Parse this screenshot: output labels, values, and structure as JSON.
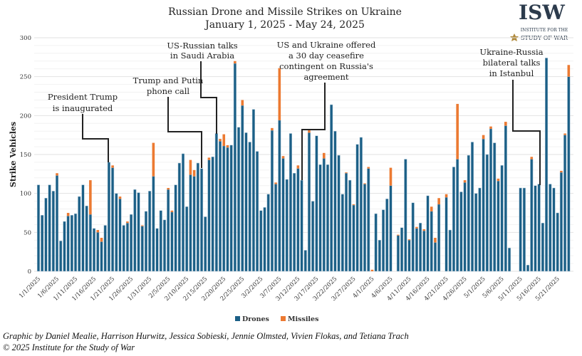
{
  "chart_data": {
    "type": "bar",
    "stacked": true,
    "title": "Russian Drone and Missile Strikes on Ukraine",
    "subtitle": "January 1, 2025 - May 24, 2025",
    "ylabel": "Strike Vehicles",
    "xlabel": "",
    "ylim": [
      0,
      300
    ],
    "yticks": [
      0,
      50,
      100,
      150,
      200,
      250,
      300
    ],
    "grid": true,
    "legend_position": "bottom",
    "x_tick_labels": [
      "1/1/2025",
      "1/6/2025",
      "1/11/2025",
      "1/16/2025",
      "1/21/2025",
      "1/26/2025",
      "1/31/2025",
      "2/5/2025",
      "2/10/2025",
      "2/15/2025",
      "2/20/2025",
      "2/25/2025",
      "3/2/2025",
      "3/7/2025",
      "3/12/2025",
      "3/17/2025",
      "3/22/2025",
      "3/27/2025",
      "4/1/2025",
      "4/6/2025",
      "4/11/2025",
      "4/16/2025",
      "4/21/2025",
      "4/26/2025",
      "5/1/2025",
      "5/6/2025",
      "5/11/2025",
      "5/16/2025",
      "5/21/2025"
    ],
    "categories": [
      "1/1",
      "1/2",
      "1/3",
      "1/4",
      "1/5",
      "1/6",
      "1/7",
      "1/8",
      "1/9",
      "1/10",
      "1/11",
      "1/12",
      "1/13",
      "1/14",
      "1/15",
      "1/16",
      "1/17",
      "1/18",
      "1/19",
      "1/20",
      "1/21",
      "1/22",
      "1/23",
      "1/24",
      "1/25",
      "1/26",
      "1/27",
      "1/28",
      "1/29",
      "1/30",
      "1/31",
      "2/1",
      "2/2",
      "2/3",
      "2/4",
      "2/5",
      "2/6",
      "2/7",
      "2/8",
      "2/9",
      "2/10",
      "2/11",
      "2/12",
      "2/13",
      "2/14",
      "2/15",
      "2/16",
      "2/17",
      "2/18",
      "2/19",
      "2/20",
      "2/21",
      "2/22",
      "2/23",
      "2/24",
      "2/25",
      "2/26",
      "2/27",
      "2/28",
      "3/1",
      "3/2",
      "3/3",
      "3/4",
      "3/5",
      "3/6",
      "3/7",
      "3/8",
      "3/9",
      "3/10",
      "3/11",
      "3/12",
      "3/13",
      "3/14",
      "3/15",
      "3/16",
      "3/17",
      "3/18",
      "3/19",
      "3/20",
      "3/21",
      "3/22",
      "3/23",
      "3/24",
      "3/25",
      "3/26",
      "3/27",
      "3/28",
      "3/29",
      "3/30",
      "3/31",
      "4/1",
      "4/2",
      "4/3",
      "4/4",
      "4/5",
      "4/6",
      "4/7",
      "4/8",
      "4/9",
      "4/10",
      "4/11",
      "4/12",
      "4/13",
      "4/14",
      "4/15",
      "4/16",
      "4/17",
      "4/18",
      "4/19",
      "4/20",
      "4/21",
      "4/22",
      "4/23",
      "4/24",
      "4/25",
      "4/26",
      "4/27",
      "4/28",
      "4/29",
      "4/30",
      "5/1",
      "5/2",
      "5/3",
      "5/4",
      "5/5",
      "5/6",
      "5/7",
      "5/8",
      "5/9",
      "5/10",
      "5/11",
      "5/12",
      "5/13",
      "5/14",
      "5/15",
      "5/16",
      "5/17",
      "5/18",
      "5/19",
      "5/20",
      "5/21",
      "5/22",
      "5/23",
      "5/24"
    ],
    "series": [
      {
        "name": "Drones",
        "color": "#1b5f86",
        "values": [
          111,
          72,
          94,
          111,
          103,
          123,
          39,
          64,
          71,
          72,
          74,
          96,
          111,
          84,
          73,
          55,
          50,
          38,
          59,
          140,
          133,
          100,
          93,
          59,
          62,
          73,
          105,
          101,
          58,
          77,
          103,
          122,
          55,
          78,
          66,
          105,
          76,
          111,
          139,
          151,
          83,
          124,
          122,
          139,
          132,
          70,
          143,
          147,
          177,
          167,
          161,
          159,
          162,
          267,
          185,
          213,
          178,
          166,
          208,
          154,
          78,
          82,
          99,
          181,
          112,
          194,
          145,
          118,
          177,
          126,
          132,
          117,
          27,
          178,
          90,
          174,
          137,
          145,
          137,
          214,
          180,
          149,
          99,
          126,
          117,
          85,
          163,
          172,
          112,
          132,
          0,
          74,
          40,
          79,
          93,
          110,
          0,
          46,
          56,
          144,
          40,
          88,
          55,
          62,
          52,
          97,
          77,
          37,
          86,
          0,
          95,
          53,
          134,
          144,
          102,
          114,
          149,
          166,
          100,
          107,
          170,
          150,
          183,
          165,
          116,
          136,
          187,
          30,
          0,
          0,
          107,
          107,
          8,
          144,
          110,
          112,
          62,
          274,
          112,
          107,
          75,
          127,
          175,
          250
        ]
      },
      {
        "name": "Missiles",
        "color": "#ec7a32",
        "values": [
          0,
          0,
          0,
          0,
          0,
          3,
          0,
          0,
          4,
          0,
          0,
          0,
          0,
          0,
          44,
          0,
          3,
          5,
          0,
          0,
          3,
          0,
          3,
          0,
          2,
          0,
          0,
          0,
          1,
          0,
          0,
          43,
          0,
          0,
          0,
          2,
          2,
          0,
          0,
          0,
          0,
          19,
          8,
          0,
          0,
          0,
          3,
          0,
          0,
          3,
          15,
          3,
          0,
          3,
          0,
          7,
          0,
          0,
          0,
          0,
          0,
          0,
          0,
          3,
          2,
          67,
          3,
          0,
          0,
          0,
          4,
          0,
          0,
          3,
          0,
          0,
          0,
          7,
          0,
          0,
          0,
          0,
          0,
          1,
          0,
          1,
          0,
          0,
          1,
          2,
          2,
          0,
          0,
          0,
          0,
          23,
          0,
          1,
          0,
          0,
          1,
          0,
          2,
          0,
          2,
          0,
          6,
          6,
          8,
          0,
          4,
          0,
          0,
          71,
          0,
          3,
          0,
          0,
          0,
          0,
          5,
          0,
          3,
          0,
          3,
          0,
          5,
          0,
          0,
          0,
          0,
          0,
          0,
          3,
          0,
          0,
          0,
          0,
          0,
          0,
          0,
          2,
          2,
          15
        ]
      }
    ],
    "annotations": [
      {
        "lines": [
          "President Trump",
          "is inaugurated"
        ],
        "date": "1/20"
      },
      {
        "lines": [
          "Trump and Putin",
          "phone call"
        ],
        "date": "2/13"
      },
      {
        "lines": [
          "US-Russian talks",
          "in Saudi Arabia"
        ],
        "date": "2/18"
      },
      {
        "lines": [
          "US and Ukraine offered",
          "a 30 day ceasefire",
          "contingent on Russia's",
          "agreement"
        ],
        "date": "3/12"
      },
      {
        "lines": [
          "Ukraine-Russia",
          "bilateral talks",
          "in Istanbul"
        ],
        "date": "5/16"
      }
    ]
  },
  "logo": {
    "mark": "ISW",
    "line1": "INSTITUTE FOR THE",
    "line2": "STUDY OF WAR",
    "color": "#2c3b4c",
    "accent": "#b08a3c"
  },
  "footer": {
    "credit": "Graphic by Daniel Mealie, Harrison Hurwitz, Jessica Sobieski, Jennie Olmsted, Vivien Flokas, and Tetiana Trach",
    "copyright": "© 2025 Institute for the Study of War"
  }
}
